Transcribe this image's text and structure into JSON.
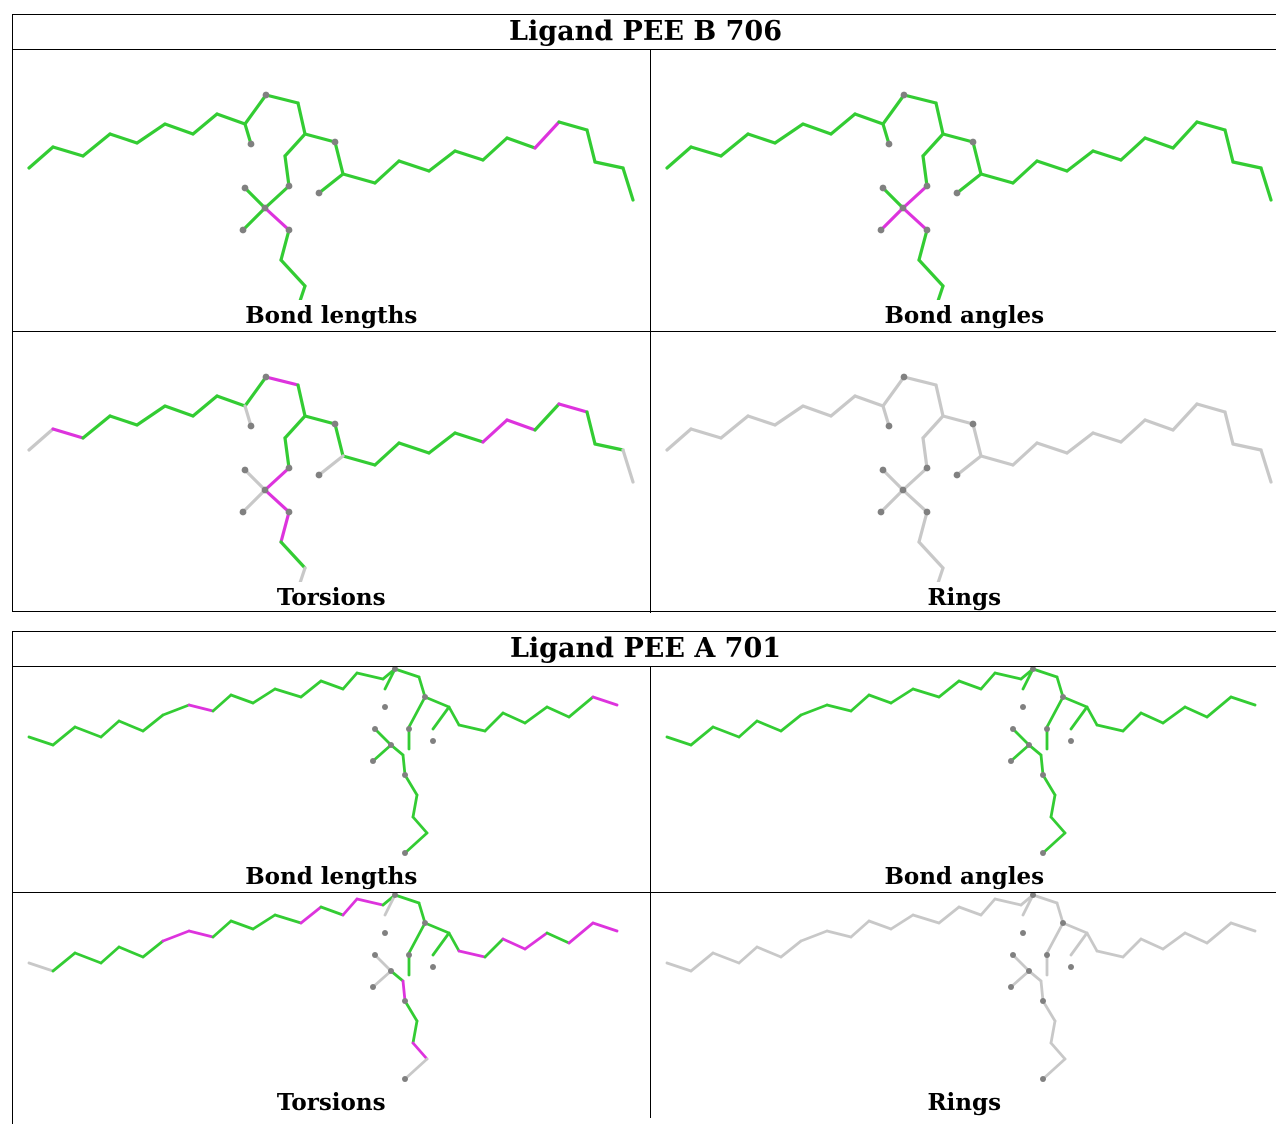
{
  "ligands": [
    {
      "title": "Ligand PEE B 706",
      "panels": [
        {
          "caption": "Bond lengths",
          "highlight": "bond-lengths"
        },
        {
          "caption": "Bond angles",
          "highlight": "bond-angles"
        },
        {
          "caption": "Torsions",
          "highlight": "torsions"
        },
        {
          "caption": "Rings",
          "highlight": "none"
        }
      ]
    },
    {
      "title": "Ligand PEE A 701",
      "panels": [
        {
          "caption": "Bond lengths",
          "highlight": "bond-lengths"
        },
        {
          "caption": "Bond angles",
          "highlight": "bond-angles"
        },
        {
          "caption": "Torsions",
          "highlight": "torsions"
        },
        {
          "caption": "Rings",
          "highlight": "none"
        }
      ]
    }
  ],
  "colors": {
    "ok": "#33cc33",
    "outlier": "#dd33dd",
    "not_assessed": "#c8c8c8",
    "atom": "#808080"
  }
}
